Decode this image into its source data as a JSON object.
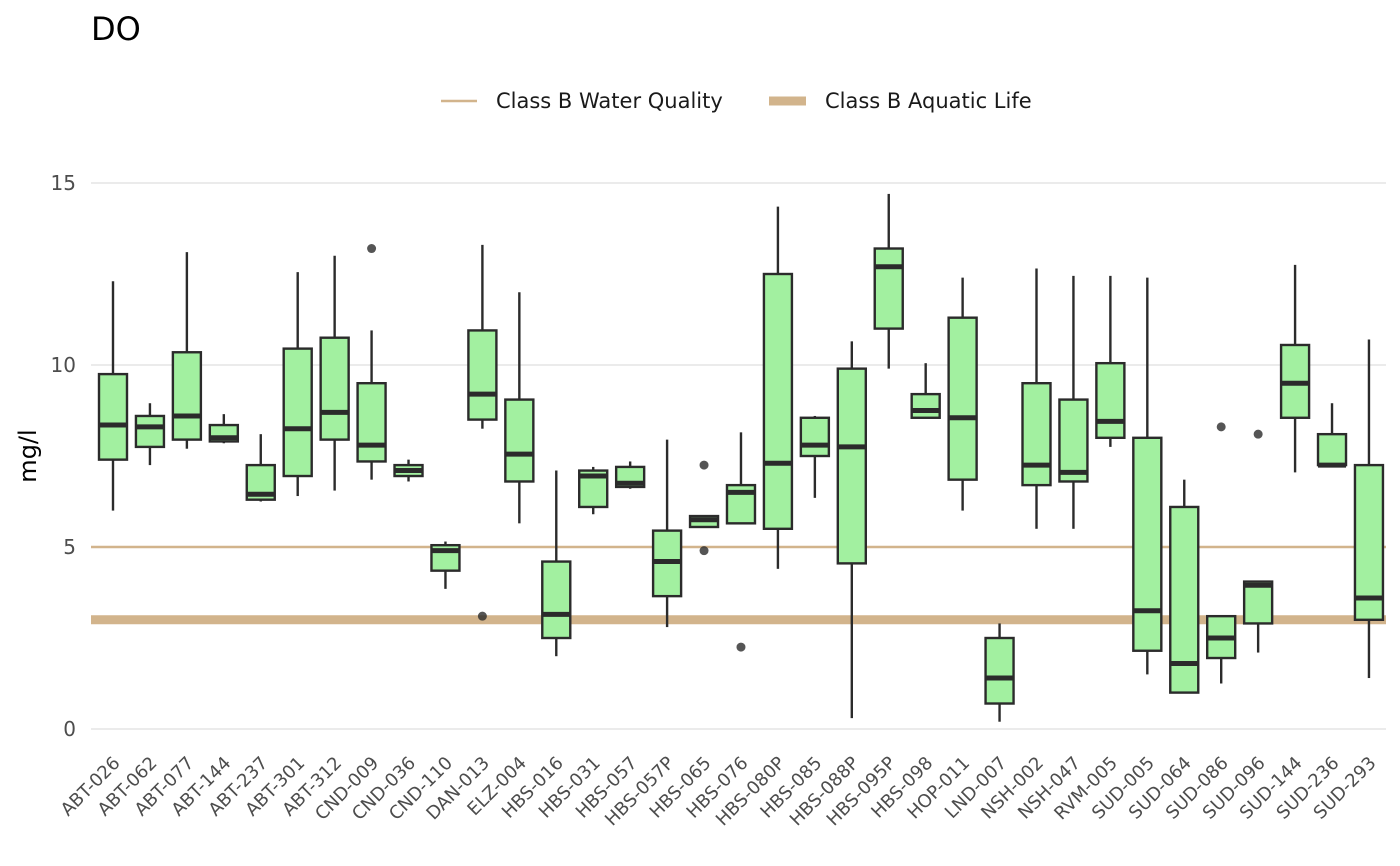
{
  "chart_data": {
    "type": "boxplot",
    "title": "DO",
    "xlabel": "",
    "ylabel": "mg/l",
    "ylim": [
      -0.6,
      16
    ],
    "yticks": [
      0,
      5,
      10,
      15
    ],
    "grid": true,
    "legend_position": "top",
    "colors": {
      "box_fill": "#a2f0a0",
      "box_stroke": "#2b2b2b",
      "reference": "#d2b48c",
      "grid": "#ebebeb"
    },
    "reference_lines": [
      {
        "name": "Class B Water Quality",
        "value": 5,
        "weight": "thin"
      },
      {
        "name": "Class B Aquatic Life",
        "value": 3,
        "weight": "thick"
      }
    ],
    "categories": [
      "ABT-026",
      "ABT-062",
      "ABT-077",
      "ABT-144",
      "ABT-237",
      "ABT-301",
      "ABT-312",
      "CND-009",
      "CND-036",
      "CND-110",
      "DAN-013",
      "ELZ-004",
      "HBS-016",
      "HBS-031",
      "HBS-057",
      "HBS-057P",
      "HBS-065",
      "HBS-076",
      "HBS-080P",
      "HBS-085",
      "HBS-088P",
      "HBS-095P",
      "HBS-098",
      "HOP-011",
      "LND-007",
      "NSH-002",
      "NSH-047",
      "RVM-005",
      "SUD-005",
      "SUD-064",
      "SUD-086",
      "SUD-096",
      "SUD-144",
      "SUD-236",
      "SUD-293"
    ],
    "boxes": [
      {
        "min": 6.0,
        "q1": 7.4,
        "median": 8.35,
        "q3": 9.75,
        "max": 12.3,
        "outliers": []
      },
      {
        "min": 7.25,
        "q1": 7.75,
        "median": 8.3,
        "q3": 8.6,
        "max": 8.95,
        "outliers": []
      },
      {
        "min": 7.7,
        "q1": 7.95,
        "median": 8.6,
        "q3": 10.35,
        "max": 13.1,
        "outliers": []
      },
      {
        "min": 7.85,
        "q1": 7.9,
        "median": 8.0,
        "q3": 8.35,
        "max": 8.65,
        "outliers": []
      },
      {
        "min": 6.25,
        "q1": 6.3,
        "median": 6.45,
        "q3": 7.25,
        "max": 8.1,
        "outliers": []
      },
      {
        "min": 6.4,
        "q1": 6.95,
        "median": 8.25,
        "q3": 10.45,
        "max": 12.55,
        "outliers": []
      },
      {
        "min": 6.55,
        "q1": 7.95,
        "median": 8.7,
        "q3": 10.75,
        "max": 13.0,
        "outliers": []
      },
      {
        "min": 6.85,
        "q1": 7.35,
        "median": 7.8,
        "q3": 9.5,
        "max": 10.95,
        "outliers": [
          13.2
        ]
      },
      {
        "min": 6.8,
        "q1": 6.95,
        "median": 7.1,
        "q3": 7.25,
        "max": 7.4,
        "outliers": []
      },
      {
        "min": 3.85,
        "q1": 4.35,
        "median": 4.9,
        "q3": 5.05,
        "max": 5.15,
        "outliers": []
      },
      {
        "min": 8.25,
        "q1": 8.5,
        "median": 9.2,
        "q3": 10.95,
        "max": 13.3,
        "outliers": [
          3.1
        ]
      },
      {
        "min": 5.65,
        "q1": 6.8,
        "median": 7.55,
        "q3": 9.05,
        "max": 12.0,
        "outliers": []
      },
      {
        "min": 2.0,
        "q1": 2.5,
        "median": 3.15,
        "q3": 4.6,
        "max": 7.1,
        "outliers": []
      },
      {
        "min": 5.9,
        "q1": 6.1,
        "median": 6.95,
        "q3": 7.1,
        "max": 7.2,
        "outliers": []
      },
      {
        "min": 6.6,
        "q1": 6.65,
        "median": 6.75,
        "q3": 7.2,
        "max": 7.35,
        "outliers": []
      },
      {
        "min": 2.8,
        "q1": 3.65,
        "median": 4.6,
        "q3": 5.45,
        "max": 7.95,
        "outliers": []
      },
      {
        "min": 5.55,
        "q1": 5.55,
        "median": 5.75,
        "q3": 5.85,
        "max": 5.85,
        "outliers": [
          7.25,
          4.9
        ]
      },
      {
        "min": 5.65,
        "q1": 5.65,
        "median": 6.5,
        "q3": 6.7,
        "max": 8.15,
        "outliers": [
          2.25
        ]
      },
      {
        "min": 4.4,
        "q1": 5.5,
        "median": 7.3,
        "q3": 12.5,
        "max": 14.35,
        "outliers": []
      },
      {
        "min": 6.35,
        "q1": 7.5,
        "median": 7.8,
        "q3": 8.55,
        "max": 8.6,
        "outliers": []
      },
      {
        "min": 0.3,
        "q1": 4.55,
        "median": 7.75,
        "q3": 9.9,
        "max": 10.65,
        "outliers": []
      },
      {
        "min": 9.9,
        "q1": 11.0,
        "median": 12.7,
        "q3": 13.2,
        "max": 14.7,
        "outliers": []
      },
      {
        "min": 8.55,
        "q1": 8.55,
        "median": 8.75,
        "q3": 9.2,
        "max": 10.05,
        "outliers": []
      },
      {
        "min": 6.0,
        "q1": 6.85,
        "median": 8.55,
        "q3": 11.3,
        "max": 12.4,
        "outliers": []
      },
      {
        "min": 0.2,
        "q1": 0.7,
        "median": 1.4,
        "q3": 2.5,
        "max": 2.9,
        "outliers": []
      },
      {
        "min": 5.5,
        "q1": 6.7,
        "median": 7.25,
        "q3": 9.5,
        "max": 12.65,
        "outliers": []
      },
      {
        "min": 5.5,
        "q1": 6.8,
        "median": 7.05,
        "q3": 9.05,
        "max": 12.45,
        "outliers": []
      },
      {
        "min": 7.75,
        "q1": 8.0,
        "median": 8.45,
        "q3": 10.05,
        "max": 12.45,
        "outliers": []
      },
      {
        "min": 1.5,
        "q1": 2.15,
        "median": 3.25,
        "q3": 8.0,
        "max": 12.4,
        "outliers": []
      },
      {
        "min": 1.0,
        "q1": 1.0,
        "median": 1.8,
        "q3": 6.1,
        "max": 6.85,
        "outliers": []
      },
      {
        "min": 1.25,
        "q1": 1.95,
        "median": 2.5,
        "q3": 3.1,
        "max": 3.1,
        "outliers": [
          8.3
        ]
      },
      {
        "min": 2.1,
        "q1": 2.9,
        "median": 3.95,
        "q3": 4.05,
        "max": 4.05,
        "outliers": [
          8.1
        ]
      },
      {
        "min": 7.05,
        "q1": 8.55,
        "median": 9.5,
        "q3": 10.55,
        "max": 12.75,
        "outliers": []
      },
      {
        "min": 7.2,
        "q1": 7.25,
        "median": 7.25,
        "q3": 8.1,
        "max": 8.95,
        "outliers": []
      },
      {
        "min": 1.4,
        "q1": 3.0,
        "median": 3.6,
        "q3": 7.25,
        "max": 10.7,
        "outliers": []
      }
    ]
  }
}
